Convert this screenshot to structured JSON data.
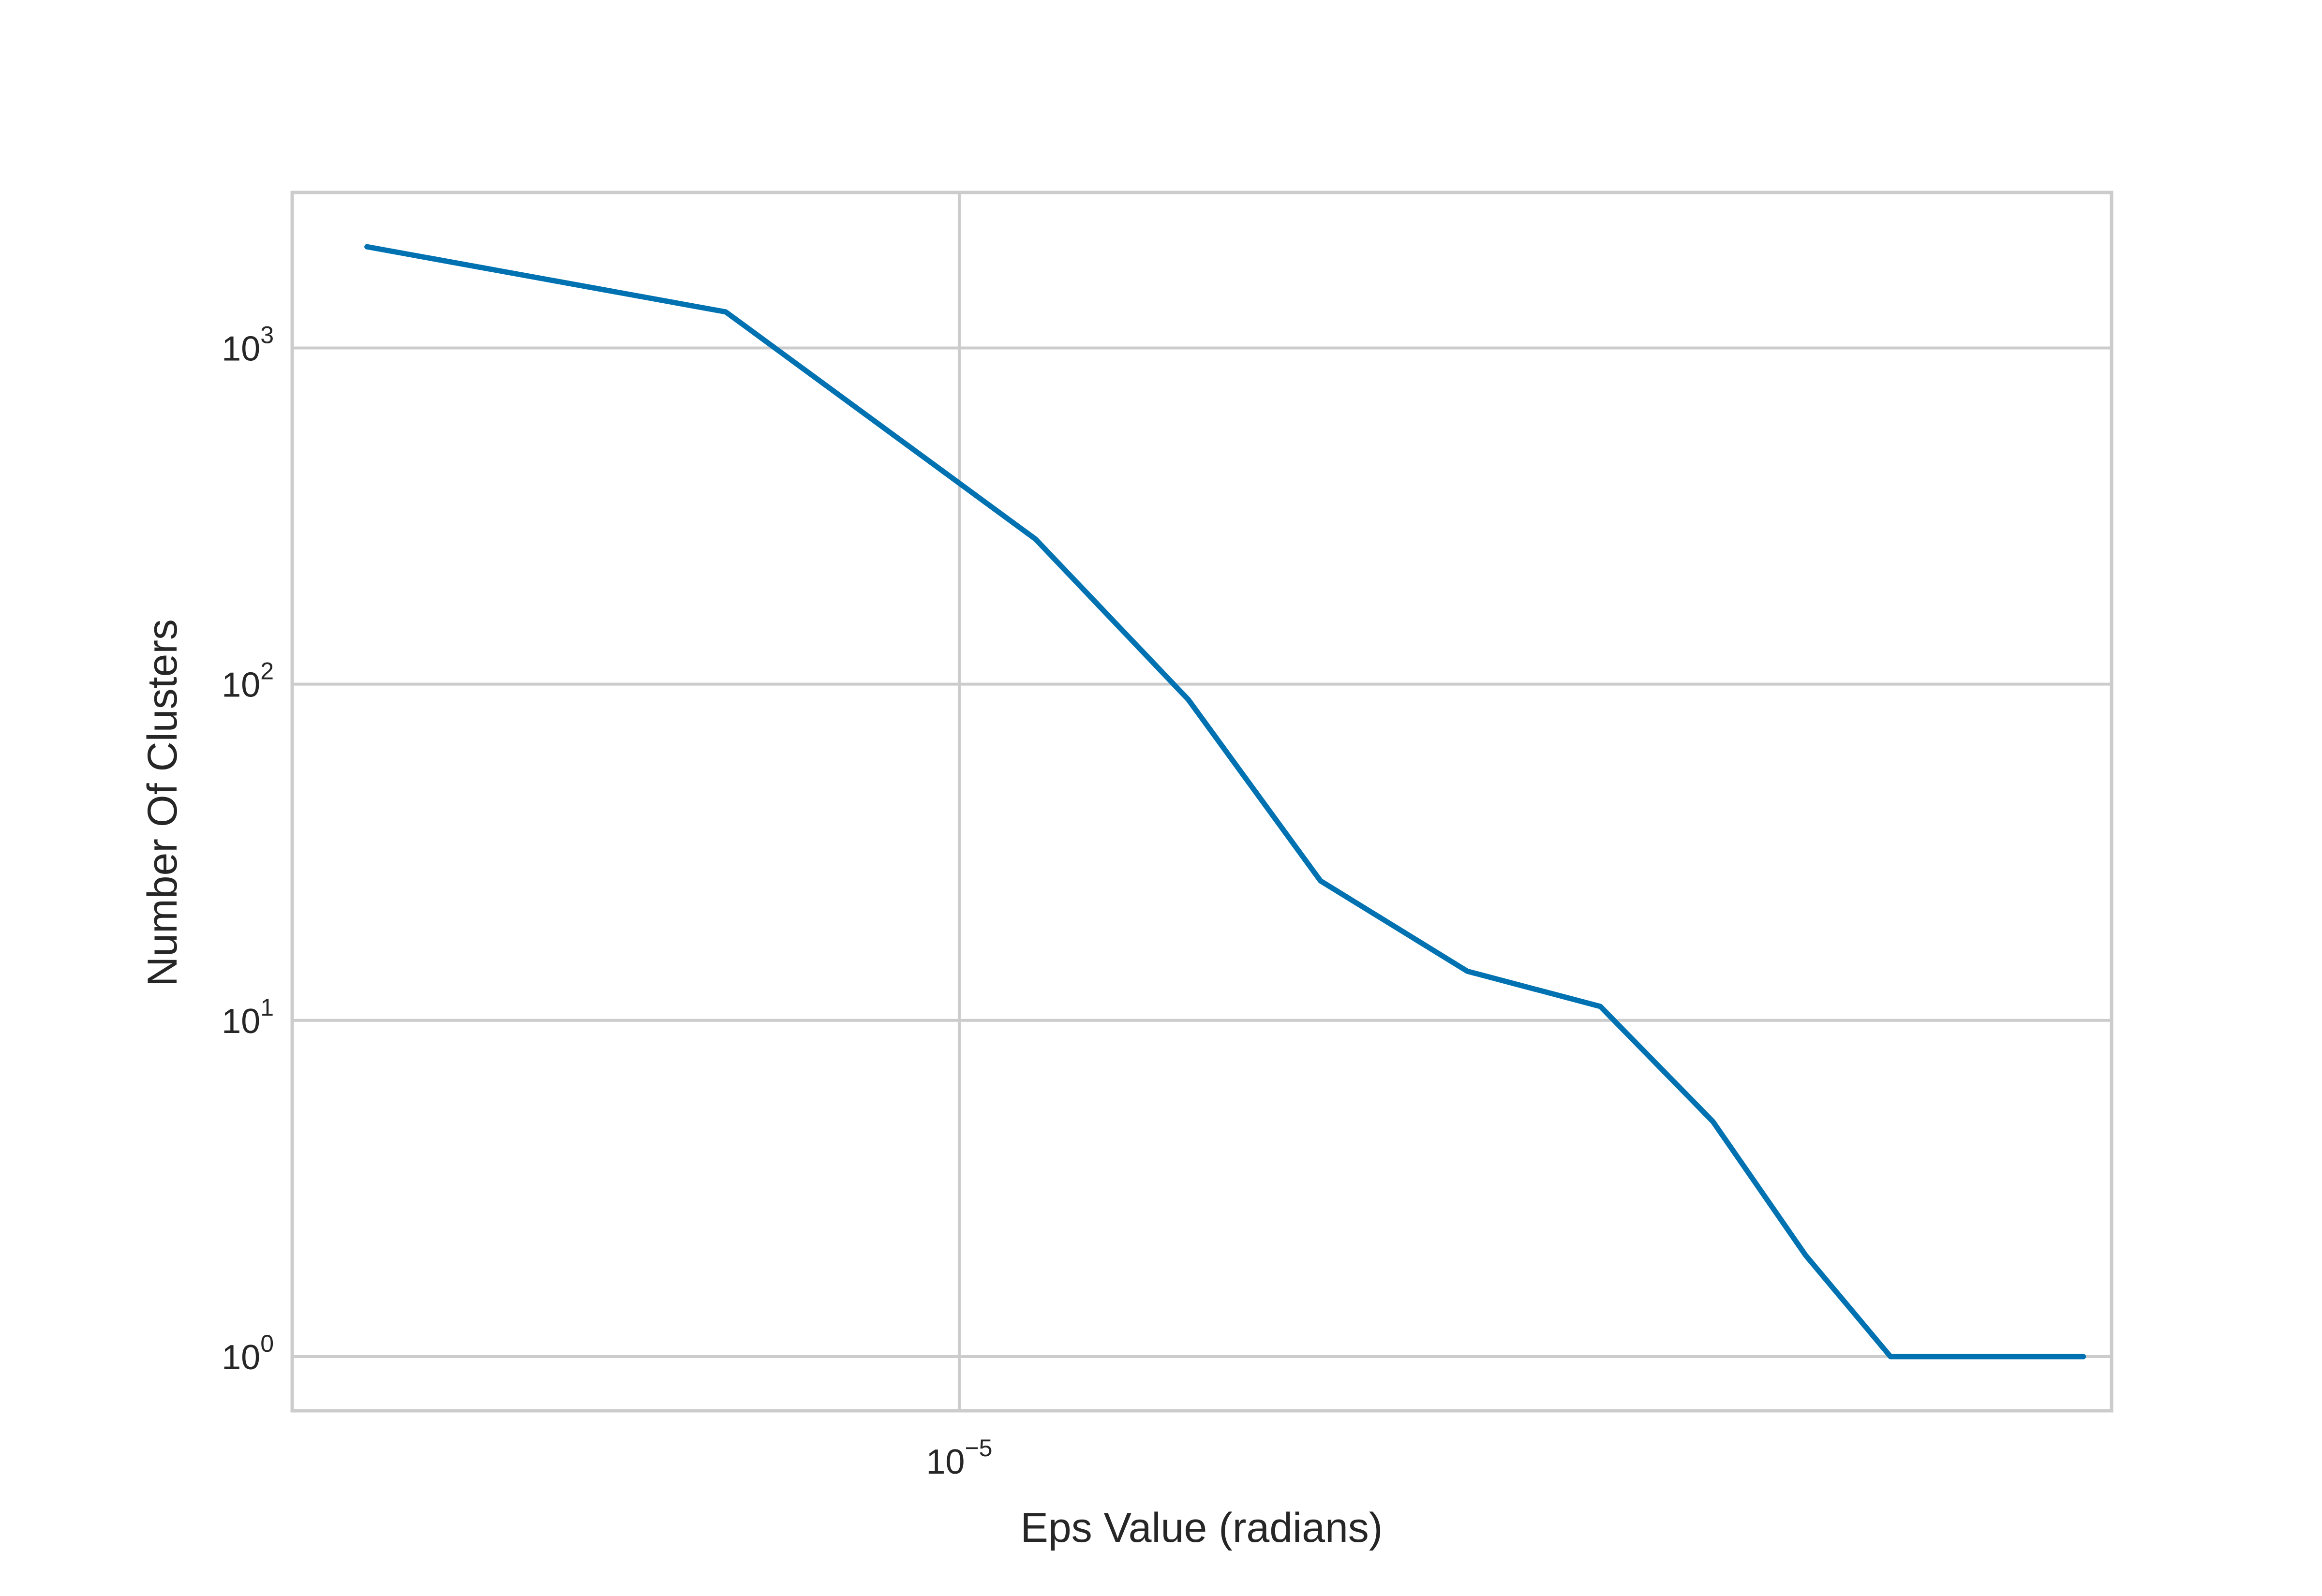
{
  "chart_data": {
    "type": "line",
    "title": "",
    "xlabel": "Eps Value (radians)",
    "ylabel": "Number Of Clusters",
    "x_scale": "log",
    "y_scale": "log",
    "xlim": [
      5.1e-06,
      3.2e-05
    ],
    "ylim": [
      0.69,
      2900
    ],
    "x_ticks": [
      {
        "value": 1e-05,
        "base": "10",
        "exp": "−5"
      }
    ],
    "y_ticks": [
      {
        "value": 1,
        "base": "10",
        "exp": "0"
      },
      {
        "value": 10,
        "base": "10",
        "exp": "1"
      },
      {
        "value": 100,
        "base": "10",
        "exp": "2"
      },
      {
        "value": 1000,
        "base": "10",
        "exp": "3"
      }
    ],
    "grid": true,
    "color": "#0072B2",
    "series": [
      {
        "x": [
          5.5e-06,
          7.9e-06,
          1.08e-05,
          1.26e-05,
          1.44e-05,
          1.67e-05,
          1.91e-05,
          2.14e-05,
          2.35e-05,
          2.56e-05,
          2.76e-05,
          3.11e-05
        ],
        "y": [
          2000,
          1280,
          270,
          90,
          26,
          14,
          11,
          5,
          2,
          1,
          1,
          1
        ]
      }
    ]
  }
}
